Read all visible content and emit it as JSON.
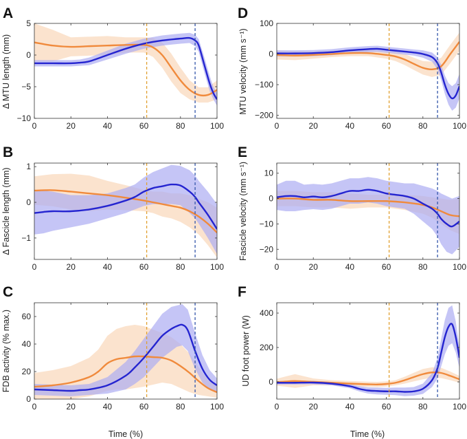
{
  "colors": {
    "orange": "#F08A3C",
    "orange_band": "#FAD9BD",
    "blue": "#2424D0",
    "blue_band": "#ADADF2",
    "orange_dashed": "#E0A030",
    "blue_dashed": "#3355AA"
  },
  "chart_data": [
    {
      "panel": "A",
      "type": "line",
      "ylabel": "Δ MTU length (mm)",
      "xlabel": "",
      "xlim": [
        0,
        100
      ],
      "ylim": [
        -10,
        5
      ],
      "xticks": [
        0,
        20,
        40,
        60,
        80,
        100
      ],
      "yticks": [
        -10,
        -5,
        0,
        5
      ],
      "vlines": [
        {
          "x": 61.5,
          "color": "orange"
        },
        {
          "x": 88,
          "color": "blue"
        }
      ],
      "series": [
        {
          "name": "orange",
          "x": [
            0,
            10,
            20,
            30,
            40,
            50,
            60,
            65,
            70,
            75,
            80,
            85,
            90,
            95,
            100
          ],
          "y": [
            2,
            1.5,
            1.3,
            1.4,
            1.5,
            1.6,
            1.6,
            1.2,
            0,
            -2,
            -4,
            -5.5,
            -6.3,
            -6.3,
            -5.5
          ],
          "band": [
            3,
            2.5,
            1.5,
            1.5,
            1.5,
            1.2,
            1.2,
            1.5,
            2,
            2.2,
            2,
            1.5,
            1.2,
            1.2,
            1.5
          ]
        },
        {
          "name": "blue",
          "x": [
            0,
            10,
            20,
            25,
            30,
            40,
            50,
            60,
            70,
            80,
            85,
            88,
            90,
            93,
            96,
            98,
            100
          ],
          "y": [
            -1.3,
            -1.3,
            -1.3,
            -1.2,
            -1,
            0,
            1,
            1.8,
            2.3,
            2.6,
            2.7,
            2.3,
            1.5,
            -1.5,
            -4.5,
            -6,
            -7
          ],
          "band": [
            0.5,
            0.5,
            0.5,
            0.5,
            0.6,
            0.7,
            0.8,
            0.8,
            0.8,
            0.8,
            0.8,
            0.9,
            1,
            1.2,
            1.2,
            1,
            1
          ]
        }
      ]
    },
    {
      "panel": "B",
      "type": "line",
      "ylabel": "Δ Fascicle length (mm)",
      "xlabel": "",
      "xlim": [
        0,
        100
      ],
      "ylim": [
        -1.6,
        1.1
      ],
      "xticks": [
        0,
        20,
        40,
        60,
        80,
        100
      ],
      "yticks": [
        -1,
        0,
        1
      ],
      "vlines": [
        {
          "x": 61.5,
          "color": "orange"
        },
        {
          "x": 88,
          "color": "blue"
        }
      ],
      "series": [
        {
          "name": "orange",
          "x": [
            0,
            10,
            20,
            30,
            40,
            50,
            60,
            65,
            70,
            75,
            80,
            85,
            90,
            95,
            100
          ],
          "y": [
            0.33,
            0.34,
            0.3,
            0.25,
            0.2,
            0.13,
            0.05,
            0,
            -0.05,
            -0.1,
            -0.15,
            -0.25,
            -0.4,
            -0.6,
            -0.85
          ],
          "band": [
            0.4,
            0.45,
            0.5,
            0.5,
            0.4,
            0.35,
            0.3,
            0.3,
            0.35,
            0.35,
            0.4,
            0.45,
            0.5,
            0.6,
            0.7
          ]
        },
        {
          "name": "blue",
          "x": [
            0,
            5,
            10,
            20,
            30,
            40,
            50,
            55,
            60,
            65,
            70,
            75,
            80,
            85,
            88,
            90,
            95,
            100
          ],
          "y": [
            -0.3,
            -0.27,
            -0.25,
            -0.25,
            -0.2,
            -0.1,
            0.05,
            0.15,
            0.3,
            0.4,
            0.45,
            0.5,
            0.47,
            0.3,
            0.15,
            0,
            -0.35,
            -0.75
          ],
          "band": [
            0.6,
            0.6,
            0.55,
            0.45,
            0.4,
            0.35,
            0.35,
            0.35,
            0.4,
            0.45,
            0.5,
            0.55,
            0.55,
            0.6,
            0.6,
            0.6,
            0.65,
            0.7
          ]
        }
      ]
    },
    {
      "panel": "C",
      "type": "line",
      "ylabel": "FDB activity (% max.)",
      "xlabel": "Time (%)",
      "xlim": [
        0,
        100
      ],
      "ylim": [
        0,
        70
      ],
      "xticks": [
        0,
        20,
        40,
        60,
        80,
        100
      ],
      "yticks": [
        0,
        20,
        40,
        60
      ],
      "vlines": [
        {
          "x": 61.5,
          "color": "orange"
        },
        {
          "x": 88,
          "color": "blue"
        }
      ],
      "series": [
        {
          "name": "orange",
          "x": [
            0,
            10,
            20,
            30,
            35,
            40,
            45,
            50,
            55,
            60,
            65,
            70,
            75,
            80,
            85,
            90,
            95,
            100
          ],
          "y": [
            9,
            10,
            12,
            16,
            20,
            26,
            29,
            30,
            31,
            31,
            30.5,
            30,
            28,
            24,
            19,
            13,
            8,
            5
          ],
          "band": [
            10,
            11,
            12,
            14,
            16,
            20,
            22,
            23,
            23,
            22,
            20,
            18,
            17,
            16,
            14,
            10,
            6,
            4
          ]
        },
        {
          "name": "blue",
          "x": [
            0,
            10,
            20,
            25,
            30,
            40,
            50,
            55,
            60,
            65,
            70,
            75,
            78,
            81,
            84,
            88,
            92,
            96,
            100
          ],
          "y": [
            7,
            6.5,
            6,
            6.5,
            7,
            10,
            17,
            23,
            30,
            38,
            46,
            51,
            53,
            54,
            50,
            35,
            22,
            14,
            10
          ],
          "band": [
            4,
            4,
            4,
            4,
            4,
            6,
            10,
            12,
            14,
            15,
            16,
            16,
            15,
            15,
            15,
            13,
            10,
            7,
            5
          ]
        }
      ]
    },
    {
      "panel": "D",
      "type": "line",
      "ylabel": "MTU velocity (mm s⁻¹)",
      "xlabel": "",
      "xlim": [
        0,
        100
      ],
      "ylim": [
        -210,
        100
      ],
      "xticks": [
        0,
        20,
        40,
        60,
        80,
        100
      ],
      "yticks": [
        -200,
        -100,
        0,
        100
      ],
      "vlines": [
        {
          "x": 61.5,
          "color": "orange"
        },
        {
          "x": 88,
          "color": "blue"
        }
      ],
      "series": [
        {
          "name": "orange",
          "x": [
            0,
            10,
            20,
            30,
            40,
            50,
            60,
            65,
            70,
            75,
            80,
            85,
            90,
            95,
            100
          ],
          "y": [
            -3,
            -5,
            -3,
            0,
            3,
            3,
            -3,
            -8,
            -18,
            -32,
            -45,
            -50,
            -40,
            0,
            40
          ],
          "band": [
            15,
            15,
            12,
            10,
            10,
            10,
            12,
            15,
            18,
            20,
            22,
            25,
            28,
            30,
            30
          ]
        },
        {
          "name": "blue",
          "x": [
            0,
            10,
            20,
            30,
            40,
            50,
            55,
            60,
            70,
            75,
            80,
            85,
            88,
            90,
            92,
            94,
            96,
            98,
            100
          ],
          "y": [
            2,
            2,
            3,
            6,
            12,
            16,
            17,
            14,
            8,
            5,
            0,
            -10,
            -30,
            -60,
            -100,
            -130,
            -145,
            -135,
            -105
          ],
          "band": [
            10,
            10,
            10,
            10,
            10,
            10,
            10,
            10,
            10,
            10,
            12,
            15,
            20,
            25,
            30,
            35,
            40,
            40,
            40
          ]
        }
      ]
    },
    {
      "panel": "E",
      "type": "line",
      "ylabel": "Fascicle velocity (mm s⁻¹)",
      "xlabel": "",
      "xlim": [
        0,
        100
      ],
      "ylim": [
        -24,
        14
      ],
      "xticks": [
        0,
        20,
        40,
        60,
        80,
        100
      ],
      "yticks": [
        -20,
        -10,
        0,
        10
      ],
      "vlines": [
        {
          "x": 61.5,
          "color": "orange"
        },
        {
          "x": 88,
          "color": "blue"
        }
      ],
      "series": [
        {
          "name": "orange",
          "x": [
            0,
            10,
            20,
            30,
            40,
            50,
            60,
            70,
            80,
            85,
            90,
            95,
            100
          ],
          "y": [
            0,
            0,
            -0.5,
            -0.5,
            -1,
            -1,
            -1,
            -1.5,
            -2.5,
            -3.5,
            -5,
            -6.5,
            -7
          ],
          "band": [
            3,
            3,
            3,
            3,
            3,
            2.5,
            2.5,
            3,
            3.5,
            4,
            5,
            6,
            7
          ]
        },
        {
          "name": "blue",
          "x": [
            0,
            5,
            10,
            15,
            20,
            25,
            30,
            35,
            40,
            45,
            50,
            55,
            60,
            65,
            70,
            75,
            80,
            85,
            88,
            90,
            93,
            96,
            100
          ],
          "y": [
            0.5,
            1,
            1,
            0.5,
            0.8,
            0.5,
            1,
            2,
            3,
            3,
            3.5,
            3,
            2,
            1.5,
            1,
            0,
            -2,
            -4,
            -6,
            -8,
            -10,
            -11,
            -9
          ],
          "band": [
            5,
            6,
            6,
            5,
            5,
            5,
            5,
            5,
            5,
            5,
            5,
            5,
            5,
            5,
            5,
            6,
            7,
            8,
            9,
            10,
            11,
            11,
            10
          ]
        }
      ]
    },
    {
      "panel": "F",
      "type": "line",
      "ylabel": "UD foot power (W)",
      "xlabel": "Time (%)",
      "xlim": [
        0,
        100
      ],
      "ylim": [
        -100,
        460
      ],
      "xticks": [
        0,
        20,
        40,
        60,
        80,
        100
      ],
      "yticks": [
        0,
        200,
        400
      ],
      "vlines": [
        {
          "x": 61.5,
          "color": "orange"
        },
        {
          "x": 88,
          "color": "blue"
        }
      ],
      "series": [
        {
          "name": "orange",
          "x": [
            0,
            5,
            10,
            20,
            30,
            40,
            50,
            55,
            60,
            65,
            70,
            75,
            80,
            85,
            90,
            95,
            100
          ],
          "y": [
            -2,
            2,
            5,
            0,
            -5,
            -10,
            -14,
            -15,
            -12,
            -5,
            10,
            28,
            45,
            55,
            52,
            35,
            15
          ],
          "band": [
            20,
            30,
            40,
            20,
            15,
            15,
            15,
            15,
            15,
            15,
            20,
            25,
            30,
            30,
            30,
            25,
            20
          ]
        },
        {
          "name": "blue",
          "x": [
            0,
            10,
            20,
            30,
            40,
            45,
            50,
            55,
            60,
            65,
            70,
            75,
            80,
            85,
            88,
            90,
            92,
            94,
            96,
            98,
            100
          ],
          "y": [
            -5,
            -5,
            -4,
            -10,
            -25,
            -40,
            -50,
            -53,
            -55,
            -55,
            -58,
            -55,
            -40,
            10,
            80,
            170,
            260,
            320,
            335,
            260,
            140
          ],
          "band": [
            10,
            10,
            10,
            10,
            12,
            15,
            18,
            20,
            20,
            22,
            25,
            25,
            30,
            40,
            60,
            80,
            100,
            110,
            110,
            90,
            60
          ]
        }
      ]
    }
  ]
}
